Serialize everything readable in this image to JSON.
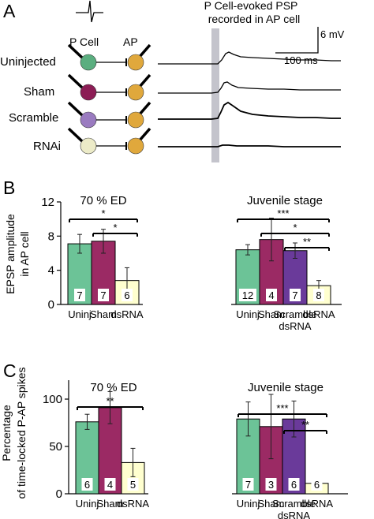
{
  "figure": {
    "panel_labels": [
      "A",
      "B",
      "C"
    ]
  },
  "panel_a": {
    "trace_title_line1": "P Cell-evoked PSP",
    "trace_title_line2": "recorded in AP cell",
    "cell_label_p": "P Cell",
    "cell_label_ap": "AP",
    "scale_voltage": "6 mV",
    "scale_time": "100 ms",
    "rows": [
      {
        "label": "Uninjected",
        "p_color": "#5aae7f"
      },
      {
        "label": "Sham",
        "p_color": "#8c1d55"
      },
      {
        "label": "Scramble",
        "p_color": "#9a7bc0"
      },
      {
        "label": "RNAi",
        "p_color": "#ecebc8"
      }
    ],
    "ap_color": "#e0a83c",
    "stim_bar_color": "#c4c4cc"
  },
  "colors": {
    "uninj": "#6cc397",
    "sham": "#9b2a64",
    "scramble": "#6a3a9a",
    "dsrna": "#ffffcf"
  },
  "chart_data": [
    {
      "type": "bar",
      "panel": "B",
      "ylabel_line1": "EPSP amplitude",
      "ylabel_line2": "in AP cell",
      "ylim": [
        0,
        12
      ],
      "yticks": [
        0,
        4,
        8,
        12
      ],
      "groups": [
        {
          "title": "70 % ED",
          "bars": [
            {
              "label": "Uninj",
              "value": 7.1,
              "err": 1.1,
              "n": "7",
              "color": "#6cc397"
            },
            {
              "label": "Sham",
              "value": 7.4,
              "err": 1.4,
              "n": "7",
              "color": "#9b2a64"
            },
            {
              "label": "dsRNA",
              "value": 2.8,
              "err": 1.5,
              "n": "6",
              "color": "#ffffcf"
            }
          ],
          "significance": [
            {
              "from": 0,
              "to": 2,
              "label": "*"
            },
            {
              "from": 1,
              "to": 2,
              "label": "*"
            }
          ]
        },
        {
          "title": "Juvenile stage",
          "bars": [
            {
              "label": "Uninj",
              "value": 6.4,
              "err": 0.6,
              "n": "12",
              "color": "#6cc397"
            },
            {
              "label": "Sham",
              "value": 7.6,
              "err": 2.5,
              "n": "4",
              "color": "#9b2a64"
            },
            {
              "label": "Scramble dsRNA",
              "value": 6.3,
              "err": 0.9,
              "n": "7",
              "color": "#6a3a9a"
            },
            {
              "label": "dsRNA",
              "value": 2.2,
              "err": 0.6,
              "n": "8",
              "color": "#ffffcf"
            }
          ],
          "significance": [
            {
              "from": 0,
              "to": 3,
              "label": "***"
            },
            {
              "from": 1,
              "to": 3,
              "label": "*"
            },
            {
              "from": 2,
              "to": 3,
              "label": "**"
            }
          ]
        }
      ]
    },
    {
      "type": "bar",
      "panel": "C",
      "ylabel_line1": "Percentage",
      "ylabel_line2": "of time-locked P-AP spikes",
      "ylim": [
        0,
        120
      ],
      "yticks": [
        0,
        50,
        100
      ],
      "groups": [
        {
          "title": "70 % ED",
          "bars": [
            {
              "label": "Uninj",
              "value": 76,
              "err": 8,
              "n": "6",
              "color": "#6cc397"
            },
            {
              "label": "Sham",
              "value": 91,
              "err": 17,
              "n": "4",
              "color": "#9b2a64"
            },
            {
              "label": "dsRNA",
              "value": 33,
              "err": 15,
              "n": "5",
              "color": "#ffffcf"
            }
          ],
          "significance": [
            {
              "from": 0,
              "to": 2,
              "label": "**"
            }
          ]
        },
        {
          "title": "Juvenile stage",
          "bars": [
            {
              "label": "Uninj",
              "value": 79,
              "err": 18,
              "n": "7",
              "color": "#6cc397"
            },
            {
              "label": "Sham",
              "value": 71,
              "err": 34,
              "n": "3",
              "color": "#9b2a64"
            },
            {
              "label": "Scramble dsRNA",
              "value": 79,
              "err": 19,
              "n": "6",
              "color": "#6a3a9a"
            },
            {
              "label": "dsRNA",
              "value": 11,
              "err": 1,
              "n": "6",
              "color": "#ffffcf"
            }
          ],
          "significance": [
            {
              "from": 0,
              "to": 3,
              "label": "***"
            },
            {
              "from": 2,
              "to": 3,
              "label": "**"
            }
          ]
        }
      ]
    }
  ]
}
